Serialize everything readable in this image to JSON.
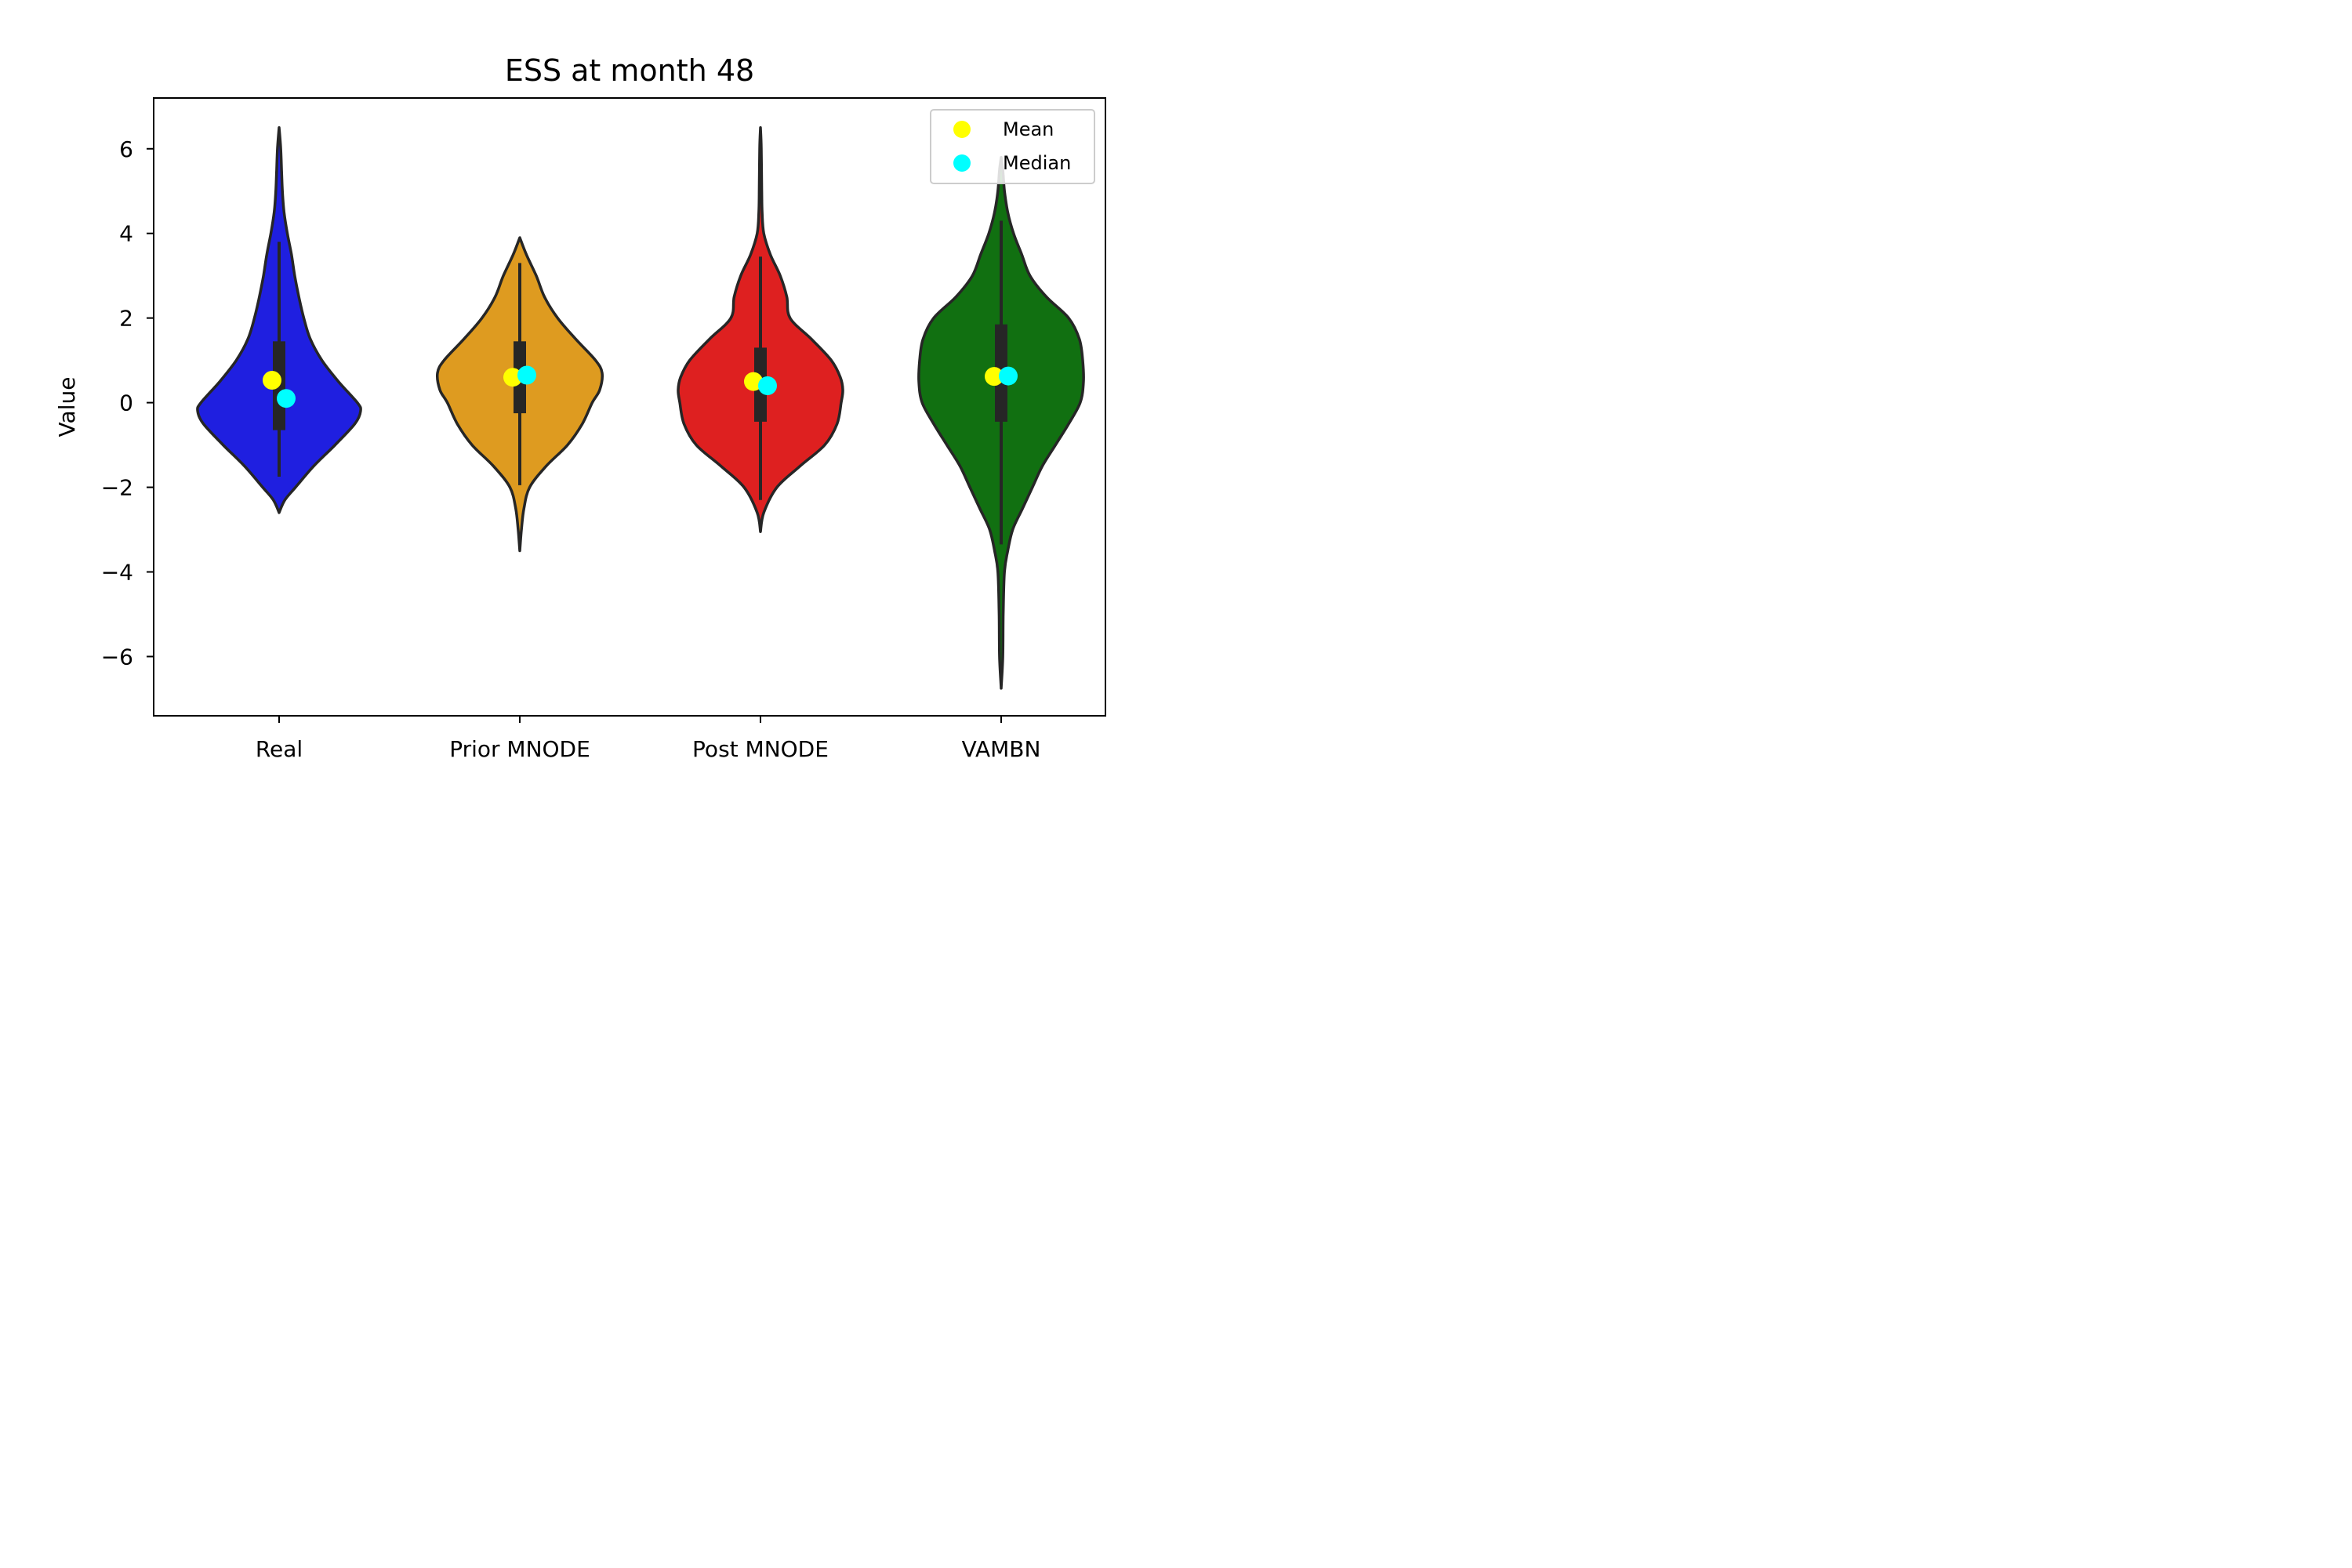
{
  "chart_data": {
    "type": "violin",
    "title": "ESS at month 48",
    "xlabel": "",
    "ylabel": "Value",
    "ylim": [
      -7.4,
      7.2
    ],
    "yticks": [
      6,
      4,
      2,
      0,
      -2,
      -4,
      -6
    ],
    "ytick_labels": [
      "6",
      "4",
      "2",
      "0",
      "−2",
      "−4",
      "−6"
    ],
    "categories": [
      "Real",
      "Prior MNODE",
      "Post MNODE",
      "VAMBN"
    ],
    "legend": {
      "placement": "top-right",
      "entries": [
        {
          "label": "Mean",
          "color": "#ffff00"
        },
        {
          "label": "Median",
          "color": "#00ffff"
        }
      ]
    },
    "series": [
      {
        "category": "Real",
        "color": "#1f1fe0",
        "range": [
          -2.6,
          6.5
        ],
        "whisker": [
          -1.75,
          3.8
        ],
        "q1": -0.65,
        "q3": 1.45,
        "mean": 0.53,
        "median": 0.1,
        "profile": [
          [
            -2.6,
            0.0
          ],
          [
            -2.3,
            0.07
          ],
          [
            -2.0,
            0.2
          ],
          [
            -1.5,
            0.42
          ],
          [
            -1.0,
            0.68
          ],
          [
            -0.5,
            0.92
          ],
          [
            -0.2,
            0.99
          ],
          [
            0.0,
            0.95
          ],
          [
            0.5,
            0.72
          ],
          [
            1.0,
            0.52
          ],
          [
            1.5,
            0.38
          ],
          [
            2.0,
            0.3
          ],
          [
            2.5,
            0.24
          ],
          [
            3.0,
            0.19
          ],
          [
            3.5,
            0.15
          ],
          [
            4.0,
            0.1
          ],
          [
            4.5,
            0.06
          ],
          [
            5.0,
            0.04
          ],
          [
            5.5,
            0.03
          ],
          [
            6.0,
            0.02
          ],
          [
            6.5,
            0.0
          ]
        ]
      },
      {
        "category": "Prior MNODE",
        "color": "#de9b20",
        "range": [
          -3.5,
          3.9
        ],
        "whisker": [
          -1.95,
          3.3
        ],
        "q1": -0.25,
        "q3": 1.45,
        "mean": 0.6,
        "median": 0.65,
        "profile": [
          [
            -3.5,
            0.0
          ],
          [
            -3.0,
            0.02
          ],
          [
            -2.5,
            0.05
          ],
          [
            -2.0,
            0.12
          ],
          [
            -1.5,
            0.32
          ],
          [
            -1.0,
            0.58
          ],
          [
            -0.5,
            0.76
          ],
          [
            0.0,
            0.88
          ],
          [
            0.3,
            0.97
          ],
          [
            0.7,
            1.0
          ],
          [
            1.0,
            0.92
          ],
          [
            1.5,
            0.68
          ],
          [
            2.0,
            0.46
          ],
          [
            2.5,
            0.3
          ],
          [
            3.0,
            0.2
          ],
          [
            3.5,
            0.08
          ],
          [
            3.9,
            0.0
          ]
        ]
      },
      {
        "category": "Post MNODE",
        "color": "#de2020",
        "range": [
          -3.05,
          6.5
        ],
        "whisker": [
          -2.3,
          3.45
        ],
        "q1": -0.45,
        "q3": 1.3,
        "mean": 0.5,
        "median": 0.4,
        "profile": [
          [
            -3.05,
            0.0
          ],
          [
            -2.6,
            0.04
          ],
          [
            -2.0,
            0.2
          ],
          [
            -1.5,
            0.48
          ],
          [
            -1.0,
            0.78
          ],
          [
            -0.5,
            0.93
          ],
          [
            0.0,
            0.98
          ],
          [
            0.3,
            1.0
          ],
          [
            0.6,
            0.97
          ],
          [
            1.0,
            0.86
          ],
          [
            1.5,
            0.62
          ],
          [
            2.0,
            0.36
          ],
          [
            2.5,
            0.32
          ],
          [
            3.0,
            0.24
          ],
          [
            3.5,
            0.12
          ],
          [
            4.0,
            0.04
          ],
          [
            4.5,
            0.02
          ],
          [
            5.0,
            0.015
          ],
          [
            6.0,
            0.01
          ],
          [
            6.5,
            0.0
          ]
        ]
      },
      {
        "category": "VAMBN",
        "color": "#117011",
        "range": [
          -6.75,
          5.8
        ],
        "whisker": [
          -3.35,
          4.3
        ],
        "q1": -0.45,
        "q3": 1.85,
        "mean": 0.62,
        "median": 0.63,
        "profile": [
          [
            -6.75,
            0.0
          ],
          [
            -6.0,
            0.02
          ],
          [
            -5.0,
            0.025
          ],
          [
            -4.0,
            0.04
          ],
          [
            -3.5,
            0.08
          ],
          [
            -3.0,
            0.14
          ],
          [
            -2.5,
            0.26
          ],
          [
            -2.0,
            0.38
          ],
          [
            -1.5,
            0.5
          ],
          [
            -1.0,
            0.66
          ],
          [
            -0.5,
            0.82
          ],
          [
            0.0,
            0.96
          ],
          [
            0.5,
            1.0
          ],
          [
            1.0,
            0.99
          ],
          [
            1.5,
            0.95
          ],
          [
            2.0,
            0.82
          ],
          [
            2.5,
            0.55
          ],
          [
            3.0,
            0.35
          ],
          [
            3.5,
            0.25
          ],
          [
            4.0,
            0.15
          ],
          [
            4.5,
            0.08
          ],
          [
            5.0,
            0.04
          ],
          [
            5.5,
            0.02
          ],
          [
            5.8,
            0.0
          ]
        ]
      }
    ]
  }
}
